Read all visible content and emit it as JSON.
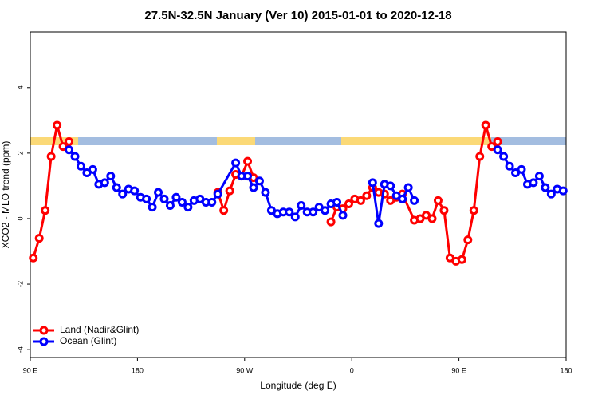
{
  "chart_data": {
    "type": "line",
    "title": "27.5N-32.5N January (Ver 10)   2015-01-01 to 2020-12-18",
    "x_label": "Longitude (deg E)",
    "y_label": "XCO2 - MLO trend (ppm)",
    "xlim": [
      90,
      540
    ],
    "ylim": [
      -4.24,
      5.7
    ],
    "xticks": [
      {
        "value": 90,
        "label": "90 E"
      },
      180,
      {
        "value": 270,
        "label": "90 W"
      },
      {
        "value": 360,
        "label": "0"
      },
      {
        "value": 450,
        "label": "90 E"
      },
      {
        "value": 540,
        "label": "180"
      }
    ],
    "yticks": [
      -4,
      -2,
      0,
      2,
      4
    ],
    "legend": "bottomleft",
    "series": [
      {
        "name": "Land (Nadir&Glint)",
        "color": "#ff0000",
        "x": [
          92.5,
          97.5,
          102.5,
          107.5,
          112.5,
          117.5,
          122.5,
          null,
          247.5,
          252.5,
          257.5,
          262.5,
          267.5,
          272.5,
          277.5,
          null,
          342.5,
          347.5,
          352.5,
          357.5,
          362.5,
          367.5,
          372.5,
          377.5,
          382.5,
          387.5,
          392.5,
          397.5,
          402.5,
          412.5,
          417.5,
          422.5,
          427.5,
          432.5,
          437.5,
          442.5,
          447.5,
          452.5,
          457.5,
          462.5,
          467.5,
          472.5,
          477.5,
          482.5
        ],
        "values": [
          -1.2,
          -0.6,
          0.25,
          1.9,
          2.85,
          2.2,
          2.35,
          null,
          0.8,
          0.25,
          0.85,
          1.35,
          1.3,
          1.75,
          1.25,
          null,
          -0.1,
          0.35,
          0.3,
          0.45,
          0.6,
          0.55,
          0.7,
          0.95,
          0.8,
          0.75,
          0.55,
          0.65,
          0.75,
          -0.05,
          0,
          0.1,
          0,
          0.55,
          0.25,
          -1.2,
          -1.3,
          -1.25,
          -0.65,
          0.25,
          1.9,
          2.85,
          2.2,
          2.35
        ]
      },
      {
        "name": "Ocean (Glint)",
        "color": "#0000ff",
        "x": [
          122.5,
          127.5,
          132.5,
          137.5,
          142.5,
          147.5,
          152.5,
          157.5,
          162.5,
          167.5,
          172.5,
          177.5,
          182.5,
          187.5,
          192.5,
          197.5,
          202.5,
          207.5,
          212.5,
          217.5,
          222.5,
          227.5,
          232.5,
          237.5,
          242.5,
          247.5,
          262.5,
          267.5,
          272.5,
          277.5,
          282.5,
          287.5,
          292.5,
          297.5,
          302.5,
          307.5,
          312.5,
          317.5,
          322.5,
          327.5,
          332.5,
          337.5,
          342.5,
          347.5,
          352.5,
          null,
          377.5,
          382.5,
          387.5,
          392.5,
          397.5,
          402.5,
          407.5,
          412.5,
          null,
          482.5,
          487.5,
          492.5,
          497.5,
          502.5,
          507.5,
          512.5,
          517.5,
          522.5,
          527.5,
          532.5,
          537.5
        ],
        "values": [
          2.1,
          1.9,
          1.6,
          1.4,
          1.5,
          1.05,
          1.1,
          1.3,
          0.95,
          0.75,
          0.9,
          0.85,
          0.65,
          0.6,
          0.35,
          0.8,
          0.6,
          0.4,
          0.65,
          0.5,
          0.35,
          0.55,
          0.6,
          0.5,
          0.5,
          0.75,
          1.7,
          1.3,
          1.3,
          0.95,
          1.15,
          0.8,
          0.25,
          0.15,
          0.2,
          0.2,
          0.05,
          0.4,
          0.2,
          0.2,
          0.35,
          0.25,
          0.45,
          0.5,
          0.1,
          null,
          1.1,
          -0.15,
          1.05,
          1.0,
          0.7,
          0.6,
          0.95,
          0.55,
          null,
          2.1,
          1.9,
          1.6,
          1.4,
          1.5,
          1.05,
          1.1,
          1.3,
          0.95,
          0.75,
          0.9,
          0.85
        ]
      }
    ]
  }
}
